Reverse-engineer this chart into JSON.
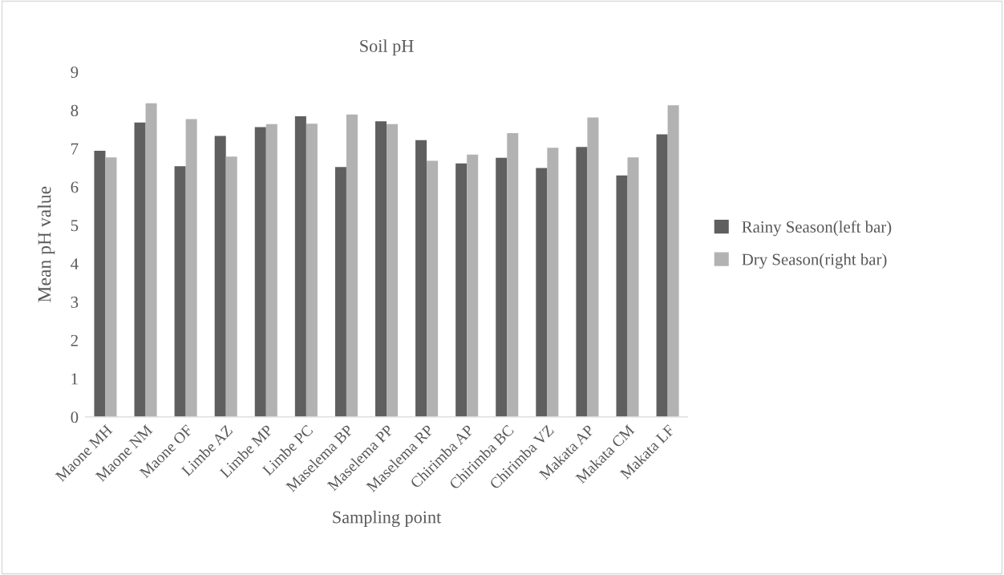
{
  "chart_data": {
    "type": "bar",
    "title": "Soil pH",
    "xlabel": "Sampling point",
    "ylabel": "Mean pH value",
    "categories": [
      "Maone MH",
      "Maone NM",
      "Maone OF",
      "Limbe AZ",
      "Limbe MP",
      "Limbe PC",
      "Maselema BP",
      "Maselema PP",
      "Maselema RP",
      "Chirimba AP",
      "Chirimba BC",
      "Chirimba VZ",
      "Makata AP",
      "Makata CM",
      "Makata LF"
    ],
    "series": [
      {
        "name": "Rainy Season(left bar)",
        "color": "#5f5f5f",
        "values": [
          6.94,
          7.68,
          6.54,
          7.33,
          7.56,
          7.84,
          6.52,
          7.71,
          7.22,
          6.61,
          6.76,
          6.49,
          7.04,
          6.3,
          7.37
        ]
      },
      {
        "name": "Dry Season(right bar)",
        "color": "#b2b2b2",
        "values": [
          6.77,
          8.18,
          7.77,
          6.79,
          7.64,
          7.65,
          7.89,
          7.64,
          6.68,
          6.84,
          7.4,
          7.02,
          7.81,
          6.77,
          8.13
        ]
      }
    ],
    "ylim": [
      0,
      9
    ],
    "yticks": [
      0,
      1,
      2,
      3,
      4,
      5,
      6,
      7,
      8,
      9
    ],
    "grid": false,
    "legend": "right"
  }
}
